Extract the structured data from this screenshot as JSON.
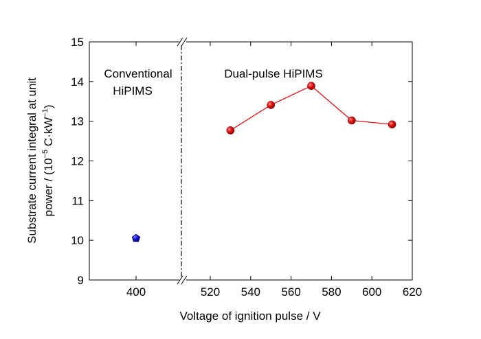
{
  "chart_data": {
    "type": "scatter",
    "xlabel": "Voltage of ignition pulse / V",
    "ylabel_line1": "Substrate current integral at unit",
    "ylabel_line2_pre": "power / (10",
    "ylabel_line2_sup1": "−5",
    "ylabel_line2_mid": " C·kW",
    "ylabel_line2_sup2": "−1",
    "ylabel_line2_post": ")",
    "ylim": [
      9,
      15
    ],
    "yticks": [
      "9",
      "10",
      "11",
      "12",
      "13",
      "14",
      "15"
    ],
    "broken_x_axis": true,
    "left_panel": {
      "xticks": [
        "400"
      ],
      "annotation_line1": "Conventional",
      "annotation_line2": "HiPIMS",
      "series": [
        {
          "marker": "pentagon",
          "color": "#1010cc",
          "x": [
            400
          ],
          "y": [
            10.05
          ]
        }
      ]
    },
    "right_panel": {
      "xlim": [
        510,
        620
      ],
      "xticks": [
        "520",
        "540",
        "560",
        "580",
        "600",
        "620"
      ],
      "annotation": "Dual-pulse HiPIMS",
      "series": [
        {
          "marker": "circle",
          "color": "#dd1111",
          "line": true,
          "x": [
            530,
            550,
            570,
            590,
            610
          ],
          "y": [
            12.77,
            13.41,
            13.89,
            13.02,
            12.92
          ]
        }
      ]
    },
    "grid": false
  }
}
